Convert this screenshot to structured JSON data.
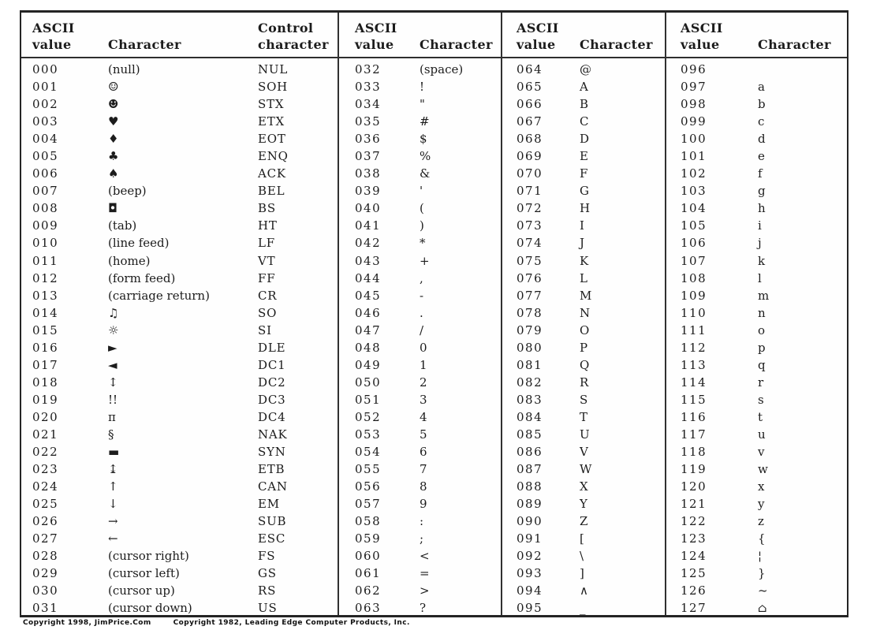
{
  "groups": [
    {
      "headers": [
        "ASCII\nvalue",
        "Character",
        "Control\ncharacter"
      ],
      "rows": [
        [
          "000",
          "(null)",
          "NUL"
        ],
        [
          "001",
          "☺",
          "SOH"
        ],
        [
          "002",
          "☻",
          "STX"
        ],
        [
          "003",
          "♥",
          "ETX"
        ],
        [
          "004",
          "♦",
          "EOT"
        ],
        [
          "005",
          "♣",
          "ENQ"
        ],
        [
          "006",
          "♠",
          "ACK"
        ],
        [
          "007",
          "(beep)",
          "BEL"
        ],
        [
          "008",
          "◘",
          "BS"
        ],
        [
          "009",
          "(tab)",
          "HT"
        ],
        [
          "010",
          "(line feed)",
          "LF"
        ],
        [
          "011",
          "(home)",
          "VT"
        ],
        [
          "012",
          "(form feed)",
          "FF"
        ],
        [
          "013",
          "(carriage return)",
          "CR"
        ],
        [
          "014",
          "♫",
          "SO"
        ],
        [
          "015",
          "☼",
          "SI"
        ],
        [
          "016",
          "►",
          "DLE"
        ],
        [
          "017",
          "◄",
          "DC1"
        ],
        [
          "018",
          "↕",
          "DC2"
        ],
        [
          "019",
          "!!",
          "DC3"
        ],
        [
          "020",
          "π",
          "DC4"
        ],
        [
          "021",
          "§",
          "NAK"
        ],
        [
          "022",
          "▬",
          "SYN"
        ],
        [
          "023",
          "↨",
          "ETB"
        ],
        [
          "024",
          "↑",
          "CAN"
        ],
        [
          "025",
          "↓",
          "EM"
        ],
        [
          "026",
          "→",
          "SUB"
        ],
        [
          "027",
          "←",
          "ESC"
        ],
        [
          "028",
          "(cursor right)",
          "FS"
        ],
        [
          "029",
          "(cursor left)",
          "GS"
        ],
        [
          "030",
          "(cursor up)",
          "RS"
        ],
        [
          "031",
          "(cursor down)",
          "US"
        ]
      ]
    },
    {
      "headers": [
        "ASCII\nvalue",
        "Character"
      ],
      "rows": [
        [
          "032",
          "(space)"
        ],
        [
          "033",
          "!"
        ],
        [
          "034",
          "\""
        ],
        [
          "035",
          "#"
        ],
        [
          "036",
          "$"
        ],
        [
          "037",
          "%"
        ],
        [
          "038",
          "&"
        ],
        [
          "039",
          "'"
        ],
        [
          "040",
          "("
        ],
        [
          "041",
          ")"
        ],
        [
          "042",
          "*"
        ],
        [
          "043",
          "+"
        ],
        [
          "044",
          ","
        ],
        [
          "045",
          "-"
        ],
        [
          "046",
          "."
        ],
        [
          "047",
          "/"
        ],
        [
          "048",
          "0"
        ],
        [
          "049",
          "1"
        ],
        [
          "050",
          "2"
        ],
        [
          "051",
          "3"
        ],
        [
          "052",
          "4"
        ],
        [
          "053",
          "5"
        ],
        [
          "054",
          "6"
        ],
        [
          "055",
          "7"
        ],
        [
          "056",
          "8"
        ],
        [
          "057",
          "9"
        ],
        [
          "058",
          ":"
        ],
        [
          "059",
          ";"
        ],
        [
          "060",
          "<"
        ],
        [
          "061",
          "="
        ],
        [
          "062",
          ">"
        ],
        [
          "063",
          "?"
        ]
      ]
    },
    {
      "headers": [
        "ASCII\nvalue",
        "Character"
      ],
      "rows": [
        [
          "064",
          "@"
        ],
        [
          "065",
          "A"
        ],
        [
          "066",
          "B"
        ],
        [
          "067",
          "C"
        ],
        [
          "068",
          "D"
        ],
        [
          "069",
          "E"
        ],
        [
          "070",
          "F"
        ],
        [
          "071",
          "G"
        ],
        [
          "072",
          "H"
        ],
        [
          "073",
          "I"
        ],
        [
          "074",
          "J"
        ],
        [
          "075",
          "K"
        ],
        [
          "076",
          "L"
        ],
        [
          "077",
          "M"
        ],
        [
          "078",
          "N"
        ],
        [
          "079",
          "O"
        ],
        [
          "080",
          "P"
        ],
        [
          "081",
          "Q"
        ],
        [
          "082",
          "R"
        ],
        [
          "083",
          "S"
        ],
        [
          "084",
          "T"
        ],
        [
          "085",
          "U"
        ],
        [
          "086",
          "V"
        ],
        [
          "087",
          "W"
        ],
        [
          "088",
          "X"
        ],
        [
          "089",
          "Y"
        ],
        [
          "090",
          "Z"
        ],
        [
          "091",
          "["
        ],
        [
          "092",
          "\\"
        ],
        [
          "093",
          "]"
        ],
        [
          "094",
          "∧"
        ],
        [
          "095",
          "_"
        ]
      ]
    },
    {
      "headers": [
        "ASCII\nvalue",
        "Character"
      ],
      "rows": [
        [
          "096",
          ""
        ],
        [
          "097",
          "a"
        ],
        [
          "098",
          "b"
        ],
        [
          "099",
          "c"
        ],
        [
          "100",
          "d"
        ],
        [
          "101",
          "e"
        ],
        [
          "102",
          "f"
        ],
        [
          "103",
          "g"
        ],
        [
          "104",
          "h"
        ],
        [
          "105",
          "i"
        ],
        [
          "106",
          "j"
        ],
        [
          "107",
          "k"
        ],
        [
          "108",
          "l"
        ],
        [
          "109",
          "m"
        ],
        [
          "110",
          "n"
        ],
        [
          "111",
          "o"
        ],
        [
          "112",
          "p"
        ],
        [
          "113",
          "q"
        ],
        [
          "114",
          "r"
        ],
        [
          "115",
          "s"
        ],
        [
          "116",
          "t"
        ],
        [
          "117",
          "u"
        ],
        [
          "118",
          "v"
        ],
        [
          "119",
          "w"
        ],
        [
          "120",
          "x"
        ],
        [
          "121",
          "y"
        ],
        [
          "122",
          "z"
        ],
        [
          "123",
          "{"
        ],
        [
          "124",
          "¦"
        ],
        [
          "125",
          "}"
        ],
        [
          "126",
          "~"
        ],
        [
          "127",
          "⌂"
        ]
      ]
    }
  ],
  "footer": {
    "copyright_left": "Copyright 1998, JimPrice.Com",
    "copyright_right": "Copyright 1982, Leading Edge Computer Products, Inc."
  }
}
